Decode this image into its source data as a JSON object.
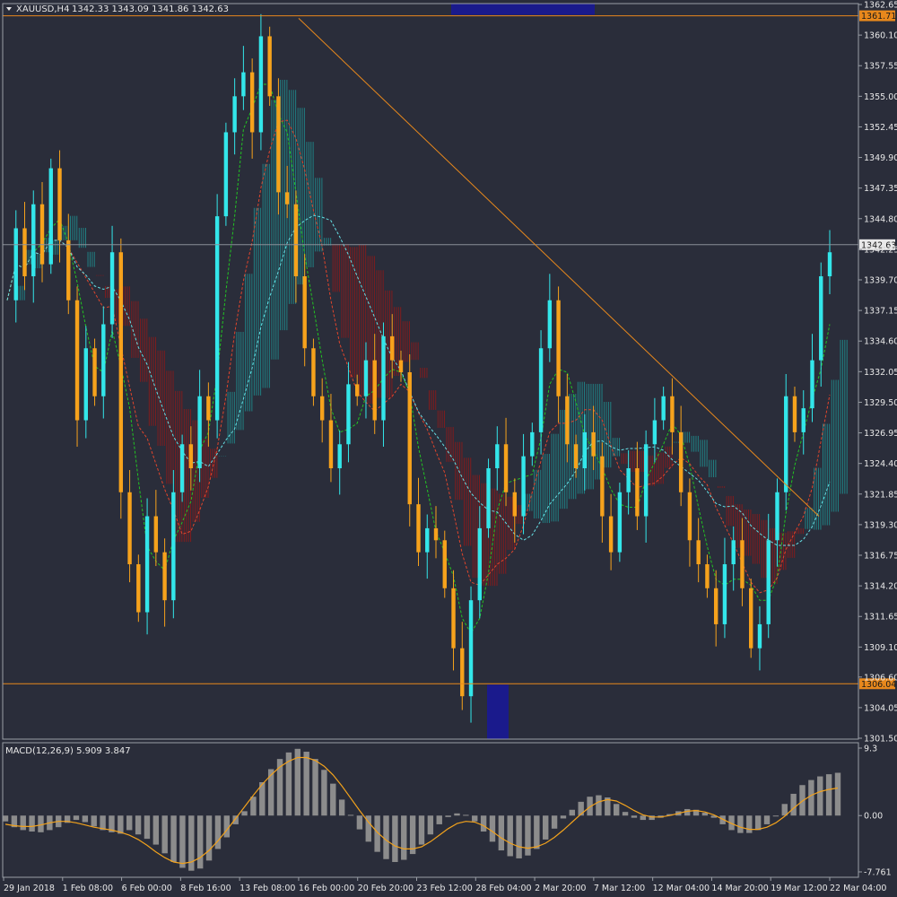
{
  "header": {
    "symbol_tf": "XAUUSD,H4",
    "ohlc": "1342.33 1343.09 1341.86 1342.63"
  },
  "macd_header": "MACD(12,26,9) 5.909 3.847",
  "colors": {
    "background": "#2a2d3a",
    "bull": "#33e6ea",
    "bear": "#f6a21c",
    "cloud_bull": "#1f8a8c",
    "cloud_bear": "#8b1a1a",
    "level": "#e8881c",
    "price_line": "#8a8f98",
    "macd_hist": "#8c8c8c",
    "macd_signal": "#f2a21c",
    "zone": "#1a1a8c"
  },
  "chart_data": [
    {
      "type": "candlestick",
      "title": "",
      "y_ticks": [
        "1362.65",
        "1360.10",
        "1357.55",
        "1355.00",
        "1352.45",
        "1349.90",
        "1347.35",
        "1344.80",
        "1342.25",
        "1339.70",
        "1337.15",
        "1334.60",
        "1332.05",
        "1329.50",
        "1326.95",
        "1324.40",
        "1321.85",
        "1319.30",
        "1316.75",
        "1314.20",
        "1311.65",
        "1309.10",
        "1306.60",
        "1304.05",
        "1301.50"
      ],
      "ylim": [
        1301.5,
        1362.65
      ],
      "levels": [
        {
          "value": 1361.71,
          "label": "1361.71"
        },
        {
          "value": 1306.04,
          "label": "1306.04"
        }
      ],
      "current_price": {
        "value": 1342.63,
        "label": "1342.63"
      },
      "x_labels": [
        "29 Jan 2018",
        "1 Feb 08:00",
        "6 Feb 00:00",
        "8 Feb 16:00",
        "13 Feb 08:00",
        "16 Feb 00:00",
        "20 Feb 20:00",
        "23 Feb 12:00",
        "28 Feb 04:00",
        "2 Mar 20:00",
        "7 Mar 12:00",
        "12 Mar 04:00",
        "14 Mar 20:00",
        "19 Mar 12:00",
        "22 Mar 04:00"
      ],
      "trendlines": [
        {
          "from": [
            1361.5,
            "16 Feb 00:00"
          ],
          "to": [
            1320.0,
            "22 Mar 04:00"
          ]
        }
      ],
      "price_path": [
        1338,
        1344,
        1340,
        1346,
        1341,
        1349,
        1343,
        1338,
        1328,
        1334,
        1330,
        1336,
        1342,
        1322,
        1316,
        1312,
        1320,
        1317,
        1313,
        1322,
        1326,
        1324,
        1330,
        1328,
        1345,
        1352,
        1355,
        1357,
        1352,
        1360,
        1355,
        1347,
        1346,
        1340,
        1334,
        1330,
        1328,
        1324,
        1326,
        1331,
        1330,
        1333,
        1328,
        1335,
        1333,
        1332,
        1321,
        1317,
        1319,
        1318,
        1314,
        1309,
        1305,
        1313,
        1319,
        1324,
        1326,
        1322,
        1320,
        1325,
        1327,
        1334,
        1338,
        1330,
        1326,
        1324,
        1327,
        1325,
        1320,
        1317,
        1322,
        1324,
        1320,
        1326,
        1328,
        1330,
        1327,
        1322,
        1318,
        1316,
        1314,
        1311,
        1316,
        1318,
        1314,
        1309,
        1311,
        1318,
        1322,
        1330,
        1327,
        1329,
        1333,
        1340,
        1342
      ]
    },
    {
      "type": "bar",
      "title": "",
      "y_ticks": [
        "9.3",
        "0.00",
        "-7.761"
      ],
      "ylim": [
        -7.761,
        9.3
      ],
      "histogram": [
        -0.8,
        -1.6,
        -2.0,
        -2.2,
        -2.3,
        -2.0,
        -1.6,
        -1.0,
        -0.6,
        -0.9,
        -1.5,
        -2.0,
        -2.3,
        -2.5,
        -2.0,
        -2.6,
        -3.2,
        -4.0,
        -5.2,
        -6.4,
        -7.2,
        -7.6,
        -7.3,
        -6.2,
        -4.6,
        -3.0,
        -1.2,
        0.6,
        2.6,
        4.6,
        6.4,
        7.8,
        8.7,
        9.2,
        8.8,
        7.8,
        6.3,
        4.4,
        2.2,
        0.1,
        -1.9,
        -3.6,
        -5.0,
        -6.0,
        -6.4,
        -6.1,
        -5.3,
        -4.0,
        -2.6,
        -1.2,
        -0.2,
        0.3,
        0.1,
        -0.8,
        -2.2,
        -3.6,
        -4.8,
        -5.6,
        -5.9,
        -5.5,
        -4.6,
        -3.3,
        -1.8,
        -0.4,
        0.8,
        1.9,
        2.6,
        2.8,
        2.5,
        1.6,
        0.5,
        -0.3,
        -0.6,
        -0.6,
        -0.3,
        0.2,
        0.6,
        0.9,
        0.8,
        0.4,
        -0.3,
        -1.2,
        -2.0,
        -2.4,
        -2.4,
        -2.0,
        -1.2,
        0.0,
        1.6,
        3.0,
        4.2,
        4.9,
        5.4,
        5.7,
        5.9
      ],
      "signal": [
        -1.2,
        -1.4,
        -1.5,
        -1.5,
        -1.3,
        -1.0,
        -0.8,
        -0.8,
        -1.0,
        -1.3,
        -1.6,
        -1.8,
        -2.0,
        -2.3,
        -2.7,
        -3.3,
        -4.1,
        -5.0,
        -5.8,
        -6.4,
        -6.6,
        -6.4,
        -5.8,
        -4.8,
        -3.5,
        -2.0,
        -0.4,
        1.2,
        2.8,
        4.3,
        5.6,
        6.7,
        7.5,
        8.0,
        8.0,
        7.6,
        6.8,
        5.6,
        4.1,
        2.4,
        0.7,
        -0.9,
        -2.3,
        -3.4,
        -4.2,
        -4.6,
        -4.6,
        -4.3,
        -3.6,
        -2.7,
        -1.8,
        -1.1,
        -0.8,
        -0.9,
        -1.4,
        -2.2,
        -3.1,
        -3.8,
        -4.3,
        -4.5,
        -4.3,
        -3.8,
        -3.0,
        -2.0,
        -0.9,
        0.2,
        1.2,
        1.9,
        2.2,
        2.0,
        1.4,
        0.7,
        0.1,
        -0.2,
        -0.2,
        0.0,
        0.3,
        0.6,
        0.7,
        0.5,
        0.1,
        -0.5,
        -1.1,
        -1.6,
        -1.9,
        -1.9,
        -1.6,
        -1.0,
        -0.1,
        1.0,
        2.0,
        2.8,
        3.3,
        3.6,
        3.8
      ]
    }
  ]
}
